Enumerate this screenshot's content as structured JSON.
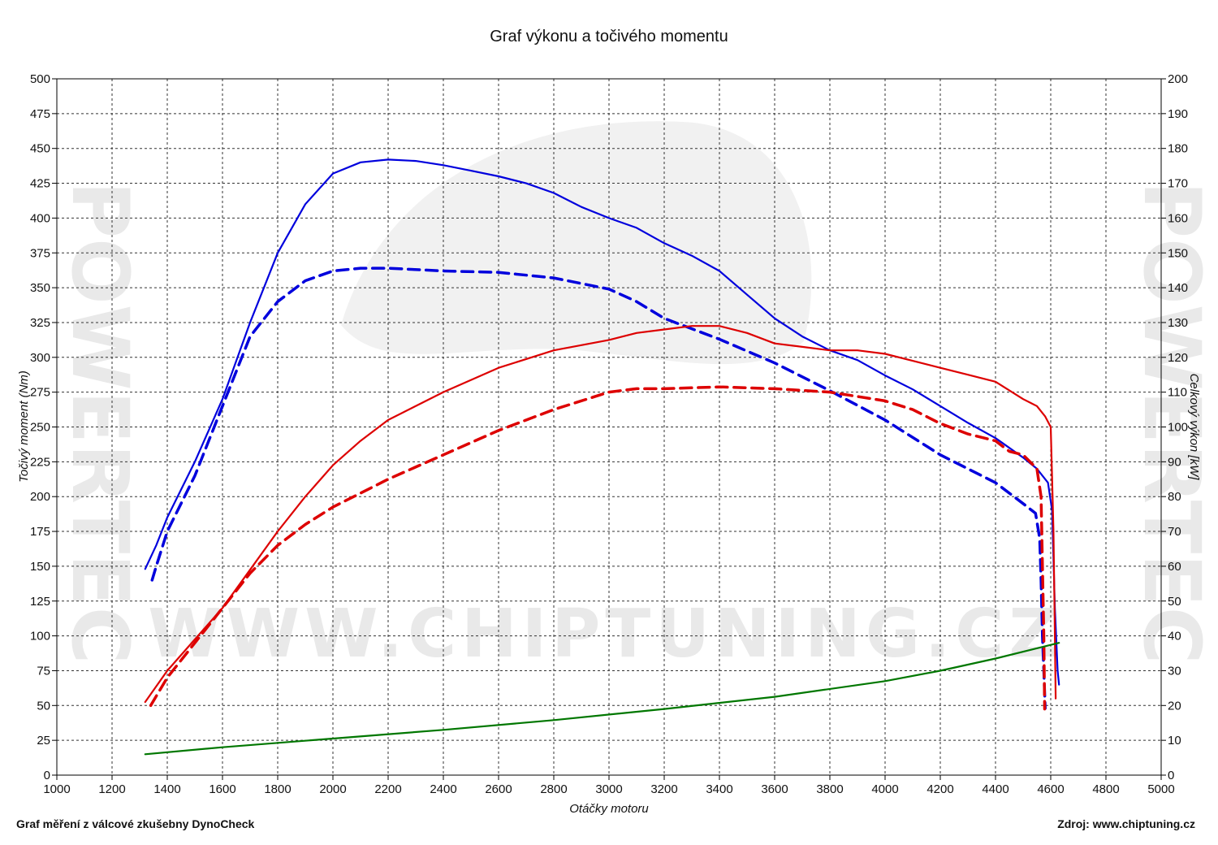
{
  "chart_data": {
    "type": "line",
    "title": "Graf výkonu a točivého momentu",
    "xlabel": "Otáčky motoru",
    "ylabel_left": "Točivý moment (Nm)",
    "ylabel_right": "Celkový výkon [kW]",
    "xlim": [
      1000,
      5000
    ],
    "ylim_left": [
      0,
      500
    ],
    "ylim_right": [
      0,
      200
    ],
    "x_ticks": [
      "1000",
      "1200",
      "1400",
      "1600",
      "1800",
      "2000",
      "2200",
      "2400",
      "2600",
      "2800",
      "3000",
      "3200",
      "3400",
      "3600",
      "3800",
      "4000",
      "4200",
      "4400",
      "4600",
      "4800",
      "5000"
    ],
    "y_left_ticks": [
      "0",
      "25",
      "50",
      "75",
      "100",
      "125",
      "150",
      "175",
      "200",
      "225",
      "250",
      "275",
      "300",
      "325",
      "350",
      "375",
      "400",
      "425",
      "450",
      "475",
      "500"
    ],
    "y_right_ticks": [
      "0",
      "10",
      "20",
      "30",
      "40",
      "50",
      "60",
      "70",
      "80",
      "90",
      "100",
      "110",
      "120",
      "130",
      "140",
      "150",
      "160",
      "170",
      "180",
      "190",
      "200"
    ],
    "grid": true,
    "series": [
      {
        "axis": "left",
        "color": "#0000dd",
        "dash": false,
        "points": [
          [
            1320,
            148
          ],
          [
            1360,
            165
          ],
          [
            1400,
            185
          ],
          [
            1500,
            225
          ],
          [
            1600,
            270
          ],
          [
            1700,
            325
          ],
          [
            1800,
            375
          ],
          [
            1900,
            410
          ],
          [
            2000,
            432
          ],
          [
            2100,
            440
          ],
          [
            2200,
            442
          ],
          [
            2300,
            441
          ],
          [
            2400,
            438
          ],
          [
            2500,
            434
          ],
          [
            2600,
            430
          ],
          [
            2700,
            425
          ],
          [
            2800,
            418
          ],
          [
            2900,
            408
          ],
          [
            3000,
            400
          ],
          [
            3100,
            393
          ],
          [
            3200,
            382
          ],
          [
            3300,
            373
          ],
          [
            3400,
            362
          ],
          [
            3500,
            345
          ],
          [
            3600,
            328
          ],
          [
            3700,
            315
          ],
          [
            3800,
            305
          ],
          [
            3900,
            298
          ],
          [
            4000,
            287
          ],
          [
            4100,
            277
          ],
          [
            4200,
            265
          ],
          [
            4300,
            253
          ],
          [
            4400,
            242
          ],
          [
            4500,
            228
          ],
          [
            4550,
            220
          ],
          [
            4590,
            210
          ],
          [
            4605,
            190
          ],
          [
            4615,
            120
          ],
          [
            4625,
            75
          ],
          [
            4630,
            65
          ]
        ]
      },
      {
        "axis": "left",
        "color": "#0000dd",
        "dash": true,
        "points": [
          [
            1345,
            140
          ],
          [
            1360,
            150
          ],
          [
            1400,
            175
          ],
          [
            1500,
            215
          ],
          [
            1600,
            265
          ],
          [
            1700,
            315
          ],
          [
            1800,
            340
          ],
          [
            1900,
            355
          ],
          [
            2000,
            362
          ],
          [
            2100,
            364
          ],
          [
            2200,
            364
          ],
          [
            2400,
            362
          ],
          [
            2600,
            361
          ],
          [
            2800,
            357
          ],
          [
            3000,
            349
          ],
          [
            3100,
            340
          ],
          [
            3200,
            328
          ],
          [
            3400,
            313
          ],
          [
            3600,
            296
          ],
          [
            3800,
            276
          ],
          [
            4000,
            255
          ],
          [
            4200,
            230
          ],
          [
            4400,
            210
          ],
          [
            4500,
            195
          ],
          [
            4545,
            188
          ],
          [
            4560,
            170
          ],
          [
            4565,
            140
          ],
          [
            4570,
            100
          ],
          [
            4575,
            75
          ],
          [
            4580,
            48
          ]
        ]
      },
      {
        "axis": "right",
        "color": "#dd0000",
        "dash": false,
        "points": [
          [
            1320,
            21
          ],
          [
            1400,
            30
          ],
          [
            1500,
            39
          ],
          [
            1600,
            48
          ],
          [
            1700,
            59
          ],
          [
            1800,
            70
          ],
          [
            1900,
            80
          ],
          [
            2000,
            89
          ],
          [
            2100,
            96
          ],
          [
            2200,
            102
          ],
          [
            2400,
            110
          ],
          [
            2600,
            117
          ],
          [
            2800,
            122
          ],
          [
            3000,
            125
          ],
          [
            3100,
            127
          ],
          [
            3200,
            128
          ],
          [
            3300,
            129
          ],
          [
            3400,
            129
          ],
          [
            3500,
            127
          ],
          [
            3600,
            124
          ],
          [
            3700,
            123
          ],
          [
            3800,
            122
          ],
          [
            3900,
            122
          ],
          [
            4000,
            121
          ],
          [
            4100,
            119
          ],
          [
            4200,
            117
          ],
          [
            4300,
            115
          ],
          [
            4400,
            113
          ],
          [
            4500,
            108
          ],
          [
            4550,
            106
          ],
          [
            4580,
            103
          ],
          [
            4600,
            100
          ],
          [
            4610,
            70
          ],
          [
            4615,
            40
          ],
          [
            4618,
            22
          ]
        ]
      },
      {
        "axis": "right",
        "color": "#dd0000",
        "dash": true,
        "points": [
          [
            1340,
            20
          ],
          [
            1400,
            28
          ],
          [
            1500,
            38
          ],
          [
            1600,
            48
          ],
          [
            1700,
            58
          ],
          [
            1800,
            66
          ],
          [
            1900,
            72
          ],
          [
            2000,
            77
          ],
          [
            2200,
            85
          ],
          [
            2400,
            92
          ],
          [
            2600,
            99
          ],
          [
            2800,
            105
          ],
          [
            3000,
            110
          ],
          [
            3100,
            111
          ],
          [
            3200,
            111
          ],
          [
            3400,
            111.5
          ],
          [
            3600,
            111
          ],
          [
            3800,
            110
          ],
          [
            4000,
            107.5
          ],
          [
            4100,
            105
          ],
          [
            4200,
            101
          ],
          [
            4300,
            98
          ],
          [
            4400,
            96
          ],
          [
            4450,
            93
          ],
          [
            4500,
            92
          ],
          [
            4550,
            88
          ],
          [
            4565,
            80
          ],
          [
            4570,
            60
          ],
          [
            4575,
            40
          ],
          [
            4578,
            19
          ]
        ]
      },
      {
        "axis": "right",
        "color": "#007700",
        "dash": false,
        "points": [
          [
            1320,
            6
          ],
          [
            1600,
            8
          ],
          [
            2000,
            10.5
          ],
          [
            2400,
            13
          ],
          [
            2800,
            15.8
          ],
          [
            3200,
            19
          ],
          [
            3600,
            22.5
          ],
          [
            4000,
            27
          ],
          [
            4200,
            30
          ],
          [
            4400,
            33.5
          ],
          [
            4630,
            38
          ]
        ]
      }
    ]
  },
  "footer": {
    "left": "Graf měření z válcové zkušebny DynoCheck",
    "right": "Zdroj: www.chiptuning.cz"
  },
  "watermark": {
    "main": "WWW.CHIPTUNING.CZ",
    "side": "POWERTEC"
  }
}
